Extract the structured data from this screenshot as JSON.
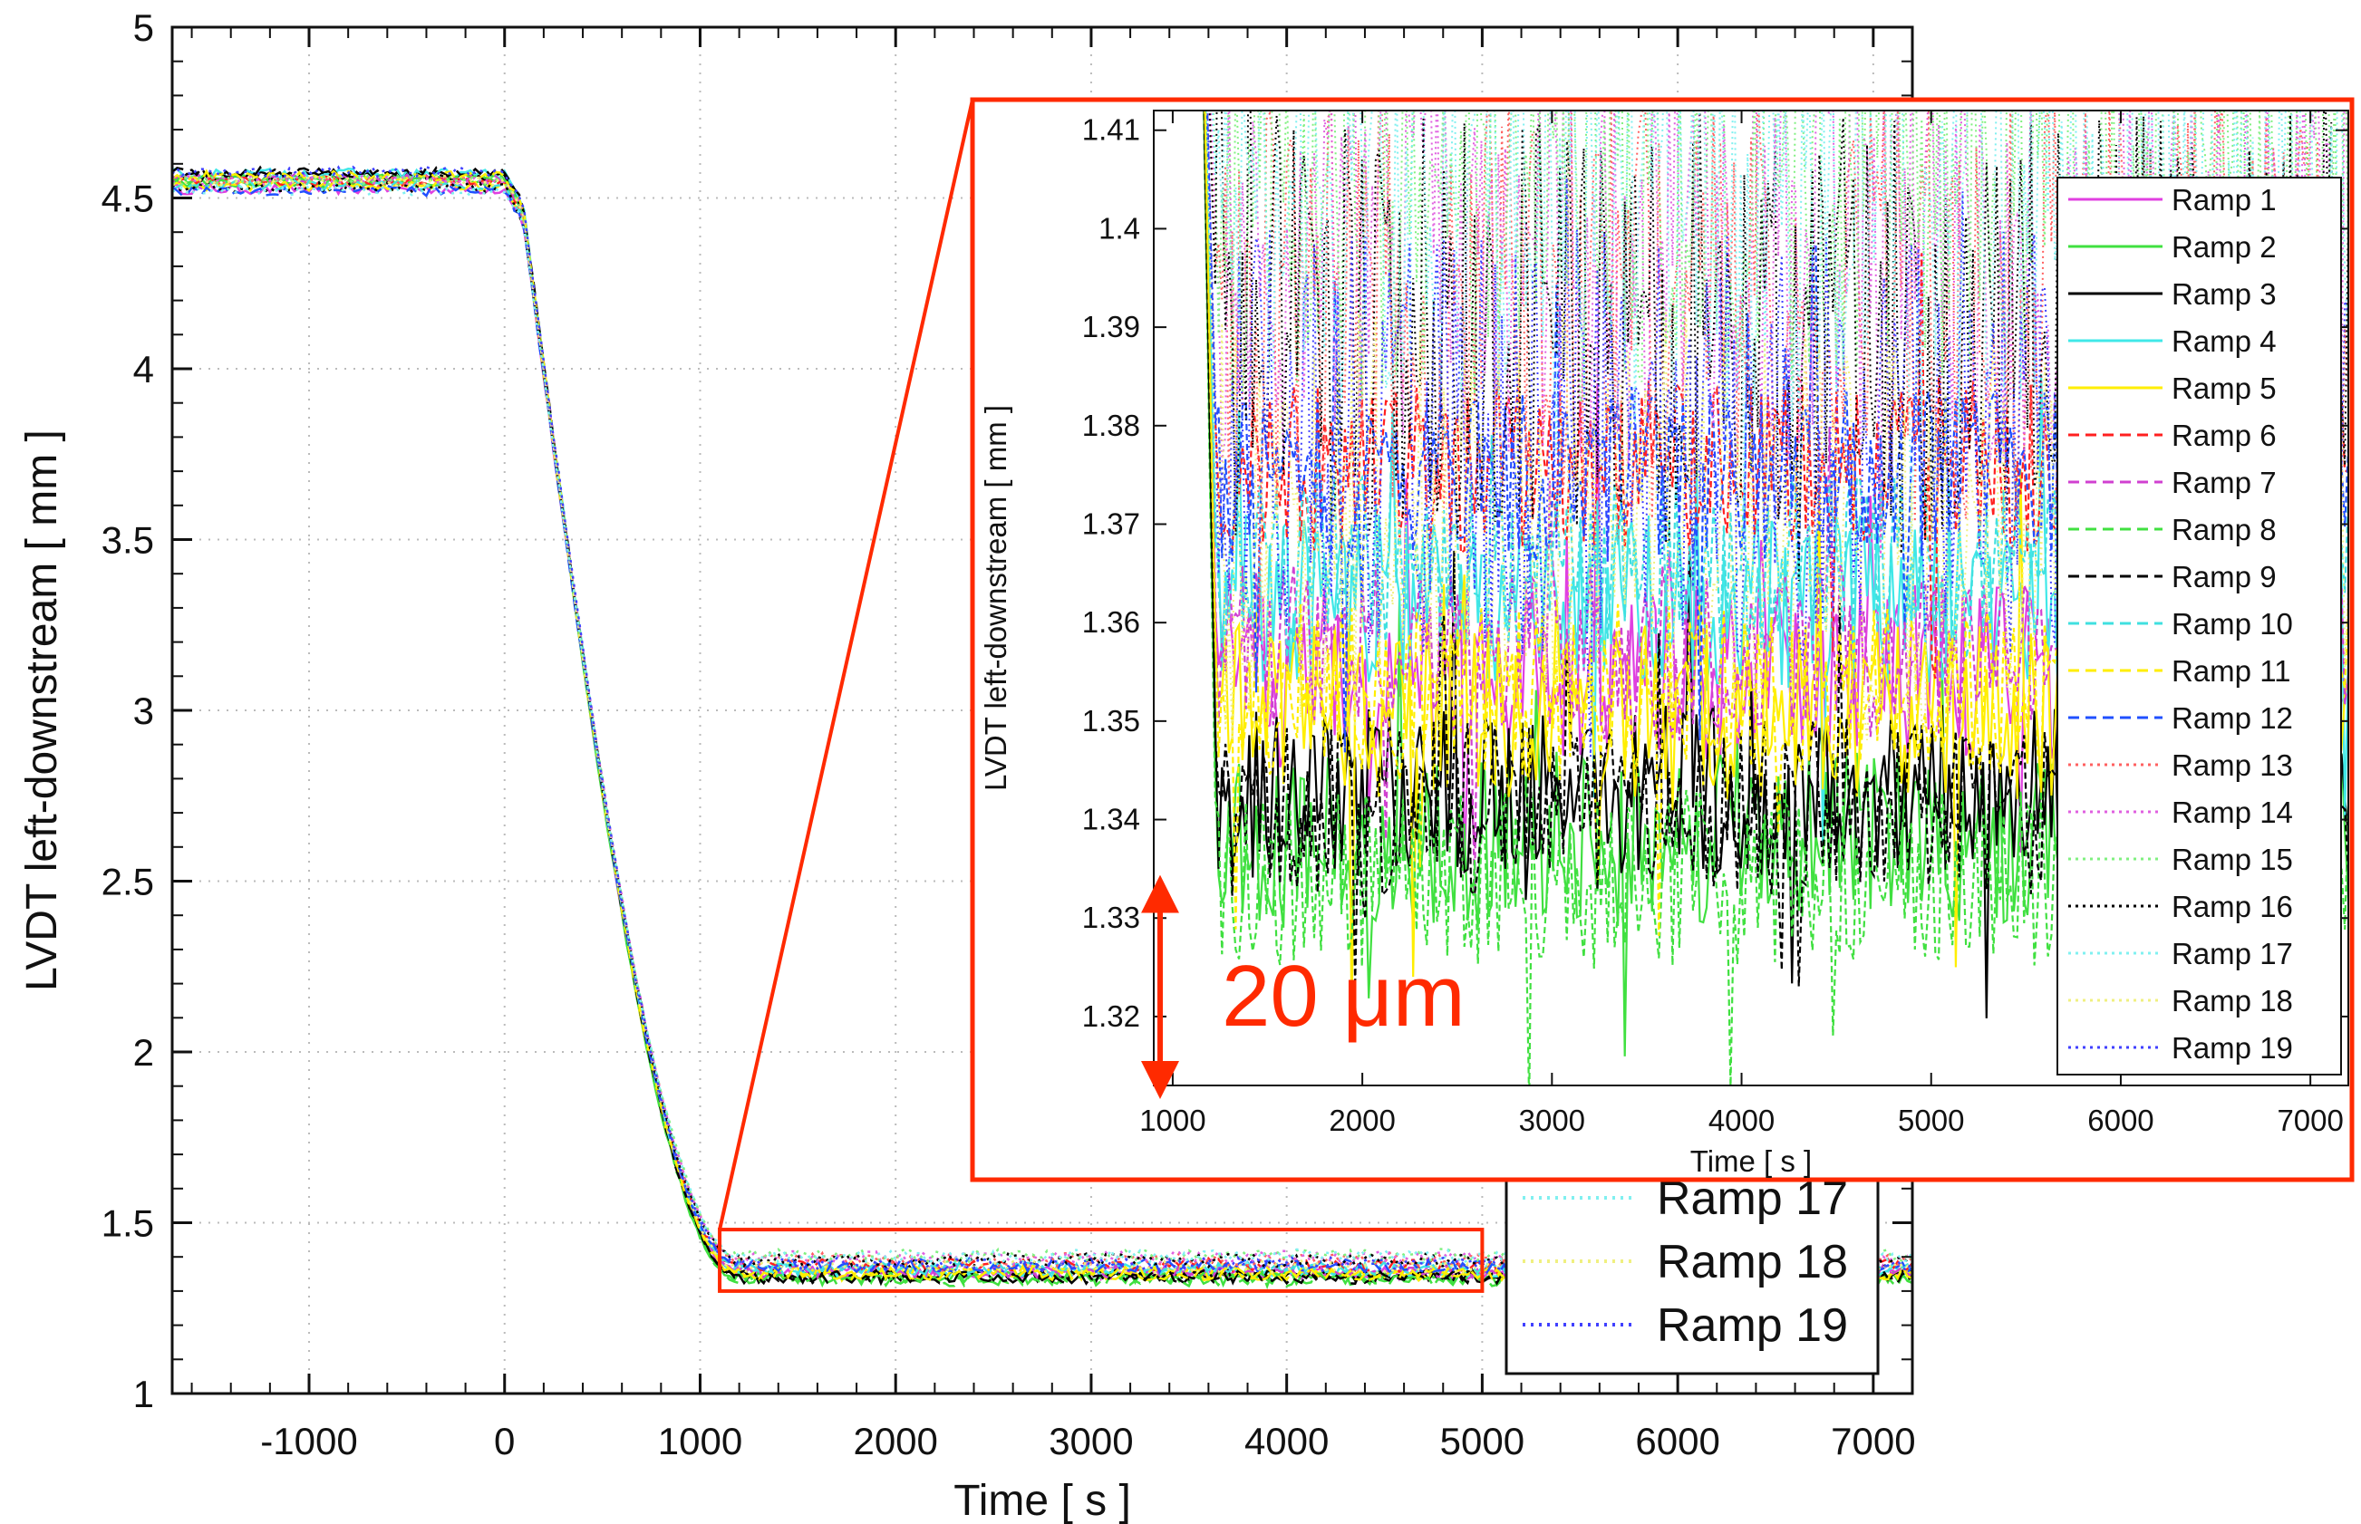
{
  "chart_data": [
    {
      "type": "line",
      "title": "",
      "xlabel": "Time [ s ]",
      "ylabel": "LVDT left-downstream [ mm ]",
      "xlim": [
        -1700,
        7200
      ],
      "ylim": [
        1,
        5
      ],
      "xticks": [
        -1000,
        0,
        1000,
        2000,
        3000,
        4000,
        5000,
        6000,
        7000
      ],
      "yticks": [
        1,
        1.5,
        2,
        2.5,
        3,
        3.5,
        4,
        4.5,
        5
      ],
      "ytick_labels": [
        "1",
        "1.5",
        "2",
        "2.5",
        "3",
        "3.5",
        "4",
        "4.5",
        "5"
      ],
      "grid": true,
      "legend_visible_entries": [
        "Ramp 17",
        "Ramp 18",
        "Ramp 19"
      ],
      "series_shape": {
        "plateau_before_ramp_mm": 4.55,
        "ramp_start_s": 0,
        "ramp_end_s": 1200,
        "plateau_after_ramp_mm": 1.37
      },
      "zoom_box": {
        "x": [
          1100,
          5000
        ],
        "y": [
          1.3,
          1.48
        ]
      }
    },
    {
      "type": "line",
      "title": "",
      "xlabel": "Time [ s ]",
      "ylabel": "LVDT left-downstream [ mm ]",
      "xlim": [
        900,
        7200
      ],
      "ylim": [
        1.313,
        1.412
      ],
      "xticks": [
        1000,
        2000,
        3000,
        4000,
        5000,
        6000,
        7000
      ],
      "yticks": [
        1.32,
        1.33,
        1.34,
        1.35,
        1.36,
        1.37,
        1.38,
        1.39,
        1.4,
        1.41
      ],
      "ytick_labels": [
        "1.32",
        "1.33",
        "1.34",
        "1.35",
        "1.36",
        "1.37",
        "1.38",
        "1.39",
        "1.4",
        "1.41"
      ],
      "grid": false,
      "legend_position": "right",
      "annotation": "20 μm",
      "series": [
        {
          "name": "Ramp 1",
          "color": "#e040e0",
          "style": "solid",
          "level": 1.355
        },
        {
          "name": "Ramp 2",
          "color": "#40e040",
          "style": "solid",
          "level": 1.338
        },
        {
          "name": "Ramp 3",
          "color": "#000000",
          "style": "solid",
          "level": 1.343
        },
        {
          "name": "Ramp 4",
          "color": "#40e8e8",
          "style": "solid",
          "level": 1.362
        },
        {
          "name": "Ramp 5",
          "color": "#ffee00",
          "style": "solid",
          "level": 1.351
        },
        {
          "name": "Ramp 6",
          "color": "#ff2020",
          "style": "dashed",
          "level": 1.376
        },
        {
          "name": "Ramp 7",
          "color": "#d040d0",
          "style": "dashed",
          "level": 1.357
        },
        {
          "name": "Ramp 8",
          "color": "#40e040",
          "style": "dashed",
          "level": 1.334
        },
        {
          "name": "Ramp 9",
          "color": "#000000",
          "style": "dashed",
          "level": 1.341
        },
        {
          "name": "Ramp 10",
          "color": "#40e0e0",
          "style": "dashed",
          "level": 1.366
        },
        {
          "name": "Ramp 11",
          "color": "#ffee00",
          "style": "dashed",
          "level": 1.353
        },
        {
          "name": "Ramp 12",
          "color": "#2050ff",
          "style": "dashed",
          "level": 1.375
        },
        {
          "name": "Ramp 13",
          "color": "#ff6060",
          "style": "dotted",
          "level": 1.392
        },
        {
          "name": "Ramp 14",
          "color": "#e060e0",
          "style": "dotted",
          "level": 1.398
        },
        {
          "name": "Ramp 15",
          "color": "#80f080",
          "style": "dotted",
          "level": 1.404
        },
        {
          "name": "Ramp 16",
          "color": "#000000",
          "style": "dotted",
          "level": 1.39
        },
        {
          "name": "Ramp 17",
          "color": "#80f0f0",
          "style": "dotted",
          "level": 1.402
        },
        {
          "name": "Ramp 18",
          "color": "#f0f080",
          "style": "dotted",
          "level": 1.37
        },
        {
          "name": "Ramp 19",
          "color": "#4040ff",
          "style": "dotted",
          "level": 1.378
        }
      ]
    }
  ]
}
